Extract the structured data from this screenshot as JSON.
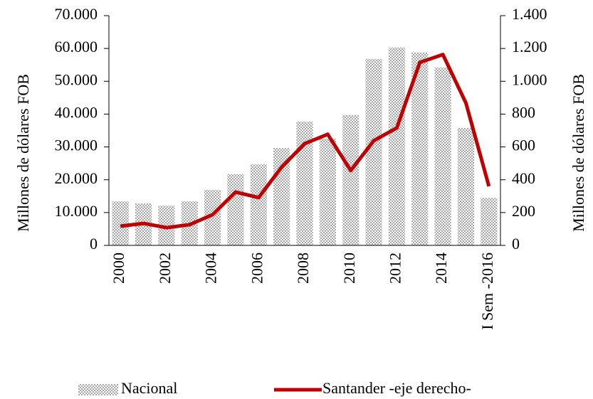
{
  "chart_data": {
    "type": "bar_line",
    "categories": [
      "2000",
      null,
      "2002",
      null,
      "2004",
      null,
      "2006",
      null,
      "2008",
      null,
      "2010",
      null,
      "2012",
      null,
      "2014",
      null,
      "I Sem -2016"
    ],
    "series": [
      {
        "name": "Nacional",
        "type": "bar",
        "color": "#a6a6a6",
        "values": [
          13400,
          12800,
          12100,
          13400,
          16900,
          21700,
          24700,
          29700,
          37700,
          32500,
          39700,
          56800,
          60300,
          58800,
          54200,
          35800,
          14500
        ]
      },
      {
        "name": "Santander -eje derecho-",
        "type": "line",
        "axis": "y2",
        "color": "#c00000",
        "values": [
          117,
          134,
          108,
          126,
          187,
          325,
          291,
          477,
          620,
          677,
          456,
          638,
          716,
          1115,
          1163,
          868,
          360
        ]
      }
    ],
    "ylabel": "Millones de dólares FOB",
    "y2label": "Millones de dólares FOB",
    "ylim": [
      0,
      70000
    ],
    "yticks": [
      0,
      {
        "value": 10000,
        "label": "10.000"
      },
      {
        "value": 20000,
        "label": "20.000"
      },
      {
        "value": 30000,
        "label": "30.000"
      },
      {
        "value": 40000,
        "label": "40.000"
      },
      {
        "value": 50000,
        "label": "50.000"
      },
      {
        "value": 60000,
        "label": "60.000"
      },
      {
        "value": 70000,
        "label": "70.000"
      }
    ],
    "y2lim": [
      0,
      1400
    ],
    "y2ticks": [
      0,
      200,
      400,
      600,
      800,
      {
        "value": 1000,
        "label": "1.000"
      },
      {
        "value": 1200,
        "label": "1.200"
      },
      {
        "value": 1400,
        "label": "1.400"
      }
    ],
    "legend": "bottom"
  }
}
